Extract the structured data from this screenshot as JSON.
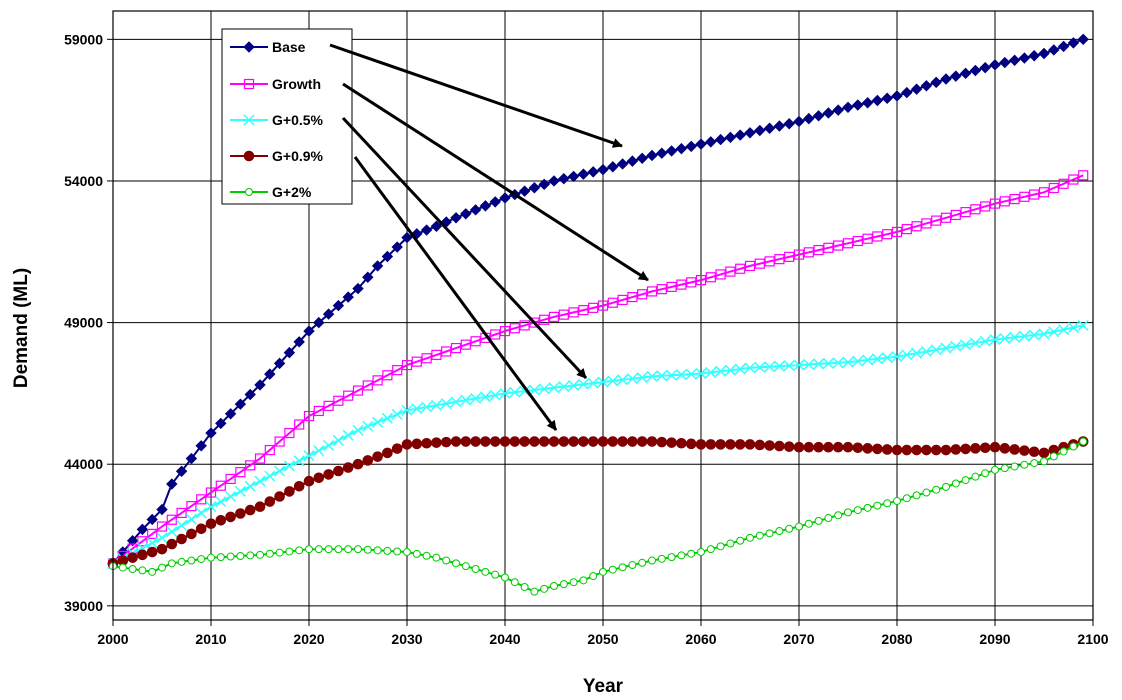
{
  "chart_data": {
    "type": "line",
    "title": "",
    "xlabel": "Year",
    "ylabel": "Demand (ML)",
    "xlim": [
      2000,
      2100
    ],
    "ylim": [
      39000,
      60000
    ],
    "x_ticks": [
      2000,
      2010,
      2020,
      2030,
      2040,
      2050,
      2060,
      2070,
      2080,
      2090,
      2100
    ],
    "y_ticks": [
      39000,
      44000,
      49000,
      54000,
      59000
    ],
    "grid": "horizontal and vertical",
    "legend_position": "top-left",
    "x_start": 2000,
    "x_end": 2099,
    "series": [
      {
        "name": "Base",
        "color": "#000080",
        "marker": "diamond",
        "anchors": [
          [
            2000,
            40500
          ],
          [
            2003,
            41700
          ],
          [
            2005,
            42400
          ],
          [
            2006,
            43300
          ],
          [
            2010,
            45100
          ],
          [
            2015,
            46800
          ],
          [
            2020,
            48700
          ],
          [
            2025,
            50200
          ],
          [
            2027,
            51000
          ],
          [
            2030,
            52000
          ],
          [
            2033,
            52400
          ],
          [
            2035,
            52700
          ],
          [
            2040,
            53400
          ],
          [
            2045,
            54000
          ],
          [
            2050,
            54400
          ],
          [
            2055,
            54900
          ],
          [
            2060,
            55300
          ],
          [
            2065,
            55700
          ],
          [
            2070,
            56100
          ],
          [
            2075,
            56600
          ],
          [
            2080,
            57000
          ],
          [
            2085,
            57600
          ],
          [
            2090,
            58100
          ],
          [
            2095,
            58500
          ],
          [
            2099,
            59000
          ]
        ]
      },
      {
        "name": "Growth",
        "color": "#FF00FF",
        "marker": "square-open",
        "anchors": [
          [
            2000,
            40500
          ],
          [
            2005,
            41800
          ],
          [
            2010,
            43000
          ],
          [
            2015,
            44200
          ],
          [
            2020,
            45700
          ],
          [
            2025,
            46600
          ],
          [
            2030,
            47500
          ],
          [
            2035,
            48100
          ],
          [
            2040,
            48700
          ],
          [
            2045,
            49200
          ],
          [
            2050,
            49600
          ],
          [
            2055,
            50100
          ],
          [
            2060,
            50500
          ],
          [
            2065,
            51000
          ],
          [
            2070,
            51400
          ],
          [
            2075,
            51800
          ],
          [
            2080,
            52200
          ],
          [
            2085,
            52700
          ],
          [
            2090,
            53200
          ],
          [
            2095,
            53600
          ],
          [
            2099,
            54200
          ]
        ]
      },
      {
        "name": "G+0.5%",
        "color": "#33FFFF",
        "marker": "x",
        "anchors": [
          [
            2000,
            40500
          ],
          [
            2005,
            41400
          ],
          [
            2010,
            42500
          ],
          [
            2015,
            43400
          ],
          [
            2020,
            44300
          ],
          [
            2025,
            45200
          ],
          [
            2030,
            45900
          ],
          [
            2035,
            46200
          ],
          [
            2040,
            46500
          ],
          [
            2045,
            46700
          ],
          [
            2050,
            46900
          ],
          [
            2055,
            47100
          ],
          [
            2060,
            47200
          ],
          [
            2065,
            47400
          ],
          [
            2070,
            47500
          ],
          [
            2075,
            47600
          ],
          [
            2080,
            47800
          ],
          [
            2085,
            48100
          ],
          [
            2090,
            48400
          ],
          [
            2095,
            48600
          ],
          [
            2099,
            48900
          ]
        ]
      },
      {
        "name": "G+0.9%",
        "color": "#800000",
        "marker": "circle-filled",
        "anchors": [
          [
            2000,
            40500
          ],
          [
            2005,
            41000
          ],
          [
            2010,
            41900
          ],
          [
            2015,
            42500
          ],
          [
            2020,
            43400
          ],
          [
            2025,
            44000
          ],
          [
            2028,
            44400
          ],
          [
            2030,
            44700
          ],
          [
            2035,
            44800
          ],
          [
            2040,
            44800
          ],
          [
            2045,
            44800
          ],
          [
            2050,
            44800
          ],
          [
            2055,
            44800
          ],
          [
            2060,
            44700
          ],
          [
            2065,
            44700
          ],
          [
            2070,
            44600
          ],
          [
            2075,
            44600
          ],
          [
            2080,
            44500
          ],
          [
            2085,
            44500
          ],
          [
            2090,
            44600
          ],
          [
            2095,
            44400
          ],
          [
            2099,
            44800
          ]
        ]
      },
      {
        "name": "G+2%",
        "color": "#00CC00",
        "marker": "circle-open",
        "anchors": [
          [
            2000,
            40400
          ],
          [
            2002,
            40300
          ],
          [
            2004,
            40200
          ],
          [
            2006,
            40500
          ],
          [
            2010,
            40700
          ],
          [
            2015,
            40800
          ],
          [
            2020,
            41000
          ],
          [
            2025,
            41000
          ],
          [
            2030,
            40900
          ],
          [
            2033,
            40700
          ],
          [
            2036,
            40400
          ],
          [
            2040,
            40000
          ],
          [
            2043,
            39500
          ],
          [
            2045,
            39700
          ],
          [
            2048,
            39900
          ],
          [
            2050,
            40200
          ],
          [
            2055,
            40600
          ],
          [
            2060,
            40900
          ],
          [
            2065,
            41400
          ],
          [
            2070,
            41800
          ],
          [
            2075,
            42300
          ],
          [
            2080,
            42700
          ],
          [
            2085,
            43200
          ],
          [
            2090,
            43800
          ],
          [
            2095,
            44100
          ],
          [
            2099,
            44800
          ]
        ]
      }
    ],
    "annotations": "Arrows from each legend entry point to its series"
  }
}
